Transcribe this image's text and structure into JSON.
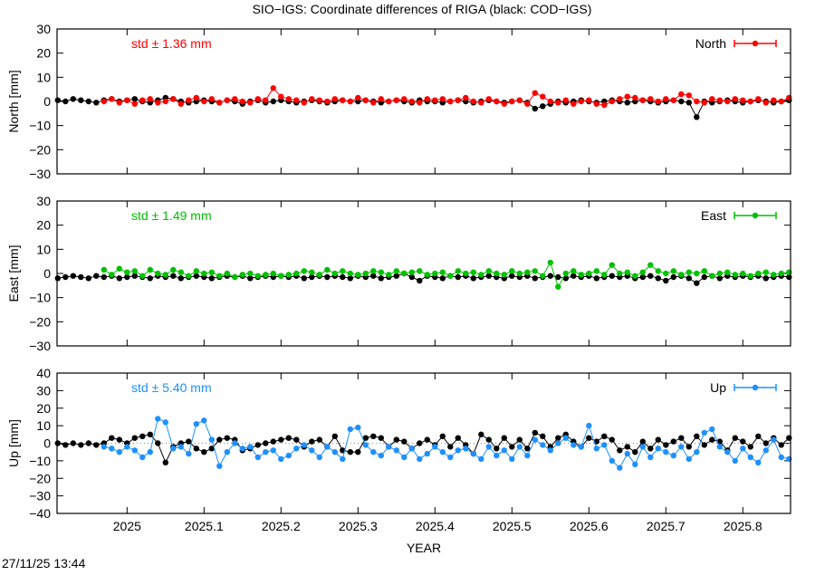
{
  "chart_data": {
    "type": "line",
    "title": "SIO−IGS: Coordinate differences of RIGA (black: COD−IGS)",
    "timestamp": "27/11/25 13:44",
    "xlabel": "YEAR",
    "xlim": [
      2024.909,
      2025.862
    ],
    "xticks": [
      2025,
      2025.1,
      2025.2,
      2025.3,
      2025.4,
      2025.5,
      2025.6,
      2025.7,
      2025.8
    ],
    "xtick_labels": [
      "2025",
      "2025.1",
      "2025.2",
      "2025.3",
      "2025.4",
      "2025.5",
      "2025.6",
      "2025.7",
      "2025.8"
    ],
    "x": [
      2024.91,
      2024.92,
      2024.93,
      2024.94,
      2024.95,
      2024.96,
      2024.97,
      2024.98,
      2024.99,
      2025.0,
      2025.01,
      2025.02,
      2025.03,
      2025.04,
      2025.05,
      2025.06,
      2025.07,
      2025.08,
      2025.09,
      2025.1,
      2025.11,
      2025.12,
      2025.13,
      2025.14,
      2025.15,
      2025.16,
      2025.17,
      2025.18,
      2025.19,
      2025.2,
      2025.21,
      2025.22,
      2025.23,
      2025.24,
      2025.25,
      2025.26,
      2025.27,
      2025.28,
      2025.29,
      2025.3,
      2025.31,
      2025.32,
      2025.33,
      2025.34,
      2025.35,
      2025.36,
      2025.37,
      2025.38,
      2025.39,
      2025.4,
      2025.41,
      2025.42,
      2025.43,
      2025.44,
      2025.45,
      2025.46,
      2025.47,
      2025.48,
      2025.49,
      2025.5,
      2025.51,
      2025.52,
      2025.53,
      2025.54,
      2025.55,
      2025.56,
      2025.57,
      2025.58,
      2025.59,
      2025.6,
      2025.61,
      2025.62,
      2025.63,
      2025.64,
      2025.65,
      2025.66,
      2025.67,
      2025.68,
      2025.69,
      2025.7,
      2025.71,
      2025.72,
      2025.73,
      2025.74,
      2025.75,
      2025.76,
      2025.77,
      2025.78,
      2025.79,
      2025.8,
      2025.81,
      2025.82,
      2025.83,
      2025.84,
      2025.85,
      2025.86
    ],
    "panels": [
      {
        "ylabel": "North [mm]",
        "ylim": [
          -30,
          30
        ],
        "yticks": [
          -30,
          -20,
          -10,
          0,
          10,
          20,
          30
        ],
        "ytick_labels": [
          "−30",
          "−20",
          "−10",
          "0",
          "10",
          "20",
          "30"
        ],
        "std_label": "std ± 1.36 mm",
        "legend": "North",
        "color": "#ff0000",
        "zero_line": false,
        "series": [
          {
            "color": "#000000",
            "values": [
              0.5,
              0,
              1,
              0.5,
              0,
              -0.5,
              0.5,
              1,
              0,
              0.5,
              1,
              0,
              -0.5,
              0.5,
              1.5,
              1,
              0,
              -0.5,
              0,
              0.5,
              0,
              -0.5,
              0.5,
              0,
              -1,
              0,
              0.5,
              -0.5,
              0,
              0.5,
              0,
              -0.5,
              0,
              0.5,
              0,
              -0.5,
              0,
              0.5,
              0,
              0,
              0.5,
              0,
              -0.5,
              0,
              0.5,
              0,
              -0.5,
              0.5,
              0,
              0,
              -0.5,
              0,
              0.5,
              0,
              -0.5,
              0,
              0.5,
              0,
              -0.5,
              0,
              0.5,
              -0.5,
              -3,
              -2,
              -1,
              0,
              -0.5,
              0,
              0.5,
              0,
              -0.5,
              0,
              0.5,
              0,
              -0.5,
              0,
              0.5,
              0,
              -0.5,
              0,
              0.5,
              0,
              -0.5,
              -6.5,
              0,
              -0.5,
              0,
              0.5,
              0,
              -0.5,
              0,
              0.5,
              0,
              -0.5,
              0,
              0.5
            ]
          },
          {
            "name": "North",
            "color": "#ff0000",
            "values": [
              null,
              null,
              null,
              null,
              null,
              null,
              0,
              1,
              -0.5,
              0.5,
              -1,
              0.5,
              1,
              -0.5,
              0,
              1,
              -1,
              0.5,
              1.5,
              0,
              1,
              -0.5,
              0.5,
              1,
              0,
              -0.5,
              1,
              0.5,
              5.5,
              2,
              1,
              0.5,
              -0.5,
              1,
              0.5,
              0,
              1,
              0.5,
              0,
              1.5,
              0.5,
              -0.5,
              1,
              0,
              0.5,
              1,
              0,
              -0.5,
              1,
              0.5,
              1,
              0,
              0.5,
              1.5,
              0,
              -0.5,
              1,
              0,
              -1,
              0,
              0.5,
              -1,
              3.5,
              2,
              0,
              -0.5,
              0.5,
              -1,
              0,
              0.5,
              -1,
              -1.5,
              0,
              1,
              2,
              1.5,
              0.5,
              1,
              0,
              1,
              0.5,
              3,
              2.5,
              0,
              -0.5,
              1,
              0.5,
              0,
              1,
              0.5,
              0,
              1,
              -0.5,
              0.5,
              0,
              1.5
            ]
          }
        ]
      },
      {
        "ylabel": "East [mm]",
        "ylim": [
          -30,
          30
        ],
        "yticks": [
          -30,
          -20,
          -10,
          0,
          10,
          20,
          30
        ],
        "ytick_labels": [
          "−30",
          "−20",
          "−10",
          "0",
          "10",
          "20",
          "30"
        ],
        "std_label": "std ± 1.49 mm",
        "legend": "East",
        "color": "#00c000",
        "zero_line": false,
        "series": [
          {
            "color": "#000000",
            "values": [
              -2,
              -1.5,
              -1,
              -1.5,
              -2,
              -1,
              -1.5,
              -1,
              -2,
              -1.5,
              -1,
              -1.5,
              -2,
              -1,
              -1.5,
              -1,
              -2,
              -1.5,
              -1,
              -1.5,
              -2,
              -1.5,
              -1,
              -1.5,
              -1,
              -2,
              -1.5,
              -1,
              -1.5,
              -1,
              -1.5,
              -1,
              -2,
              -1.5,
              -1,
              -1.5,
              -1,
              -1.5,
              -2,
              -1,
              -1.5,
              -1,
              -2,
              -1.5,
              -1,
              0,
              -1.5,
              -3,
              -1,
              -1.5,
              -2,
              -1,
              -1.5,
              -1,
              -2,
              -1.5,
              -1,
              -1.5,
              -2,
              -1,
              -1.5,
              -1,
              -2,
              -1.5,
              -1,
              -1.5,
              -2,
              -1,
              -1.5,
              -1,
              -2,
              -1.5,
              -1,
              -1.5,
              -1,
              -2,
              -1.5,
              -1,
              -2,
              -3,
              -1.5,
              -1,
              -2,
              -4,
              -1.5,
              -1,
              -2,
              -1,
              -1.5,
              -1,
              -1.5,
              -1,
              -2,
              -1.5,
              -1,
              -1.5
            ]
          },
          {
            "name": "East",
            "color": "#00c000",
            "values": [
              null,
              null,
              null,
              null,
              null,
              null,
              1.5,
              -0.5,
              2,
              0.5,
              1,
              -1,
              1.5,
              0,
              -0.5,
              1.5,
              0.5,
              -1,
              1,
              0,
              0.5,
              -1,
              0,
              -1.5,
              -0.5,
              0,
              -1,
              -0.5,
              0,
              -1,
              -0.5,
              0,
              1,
              0.5,
              -0.5,
              1.5,
              0,
              1,
              0,
              -0.5,
              0,
              1,
              0.5,
              -0.5,
              1,
              0,
              0.5,
              1,
              -0.5,
              0,
              0.5,
              -1,
              1,
              0,
              0.5,
              -0.5,
              1,
              0,
              -0.5,
              1,
              0,
              0.5,
              1,
              -1,
              4.5,
              -5.5,
              0,
              1,
              -0.5,
              0,
              1,
              -0.5,
              3.5,
              0,
              0.5,
              -1,
              0.5,
              3.5,
              1,
              0,
              1,
              -0.5,
              0.5,
              0,
              1,
              -1,
              0,
              0.5,
              -0.5,
              0,
              -1,
              0,
              0.5,
              -0.5,
              0,
              0.5
            ]
          }
        ]
      },
      {
        "ylabel": "Up [mm]",
        "ylim": [
          -40,
          40
        ],
        "yticks": [
          -40,
          -30,
          -20,
          -10,
          0,
          10,
          20,
          30,
          40
        ],
        "ytick_labels": [
          "−40",
          "−30",
          "−20",
          "−10",
          "0",
          "10",
          "20",
          "30",
          "40"
        ],
        "std_label": "std ± 5.40 mm",
        "legend": "Up",
        "color": "#1e90ff",
        "zero_line": true,
        "series": [
          {
            "color": "#000000",
            "values": [
              0,
              -1,
              0,
              -1,
              0,
              -1,
              0,
              3,
              2,
              0,
              3,
              4,
              5,
              0,
              -11,
              -2,
              0,
              1,
              -3,
              -5,
              -3,
              2,
              3,
              2,
              -4,
              -3,
              -1,
              0,
              1,
              2,
              3,
              2,
              -2,
              1,
              2,
              -2,
              4,
              -4,
              -5,
              -5,
              3,
              4,
              3,
              -2,
              2,
              1,
              -3,
              0,
              2,
              -1,
              4,
              -2,
              3,
              -1,
              -6,
              5,
              2,
              -3,
              3,
              -2,
              2,
              -3,
              6,
              4,
              -2,
              3,
              5,
              1,
              -2,
              3,
              1,
              4,
              2,
              -4,
              -2,
              -5,
              1,
              -3,
              2,
              -1,
              1,
              3,
              -2,
              4,
              -1,
              2,
              1,
              -4,
              3,
              1,
              -2,
              4,
              0,
              3,
              -1,
              3
            ]
          },
          {
            "name": "Up",
            "color": "#1e90ff",
            "values": [
              null,
              null,
              null,
              null,
              null,
              null,
              -2,
              -3,
              -5,
              -2,
              -4,
              -8,
              -5,
              14,
              12,
              -3,
              -2,
              -6,
              11,
              13,
              2,
              -13,
              -5,
              0,
              -3,
              -2,
              -8,
              -5,
              -4,
              -9,
              -7,
              -3,
              -1,
              -4,
              -8,
              -2,
              -5,
              -9,
              8,
              9,
              -1,
              -5,
              -7,
              -2,
              -4,
              -8,
              -3,
              -9,
              -6,
              -2,
              -5,
              -8,
              -4,
              -3,
              -6,
              -9,
              -2,
              -7,
              -4,
              -9,
              -2,
              -7,
              2,
              -1,
              -4,
              0,
              3,
              -1,
              -2,
              10,
              -3,
              -1,
              -10,
              -14,
              -6,
              -12,
              -2,
              -8,
              -3,
              -5,
              -7,
              -2,
              -9,
              -5,
              6,
              8,
              -2,
              -5,
              -10,
              -3,
              -8,
              -11,
              -4,
              2,
              -8,
              -9
            ]
          }
        ]
      }
    ]
  }
}
